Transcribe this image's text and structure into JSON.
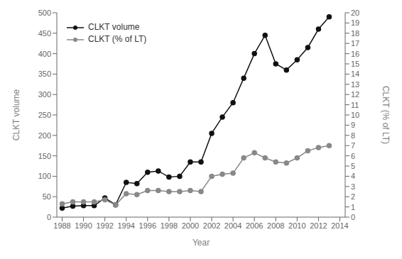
{
  "chart_data": {
    "type": "line",
    "xlabel": "Year",
    "ylabel": "CLKT volume",
    "y2label": "CLKT (% of LT)",
    "x": [
      1988,
      1989,
      1990,
      1991,
      1992,
      1993,
      1994,
      1995,
      1996,
      1997,
      1998,
      1999,
      2000,
      2001,
      2002,
      2003,
      2004,
      2005,
      2006,
      2007,
      2008,
      2009,
      2010,
      2011,
      2012,
      2013
    ],
    "series": [
      {
        "name": "CLKT volume",
        "color": "#111111",
        "marker": "circle",
        "values": [
          22,
          27,
          28,
          28,
          47,
          30,
          85,
          82,
          110,
          113,
          98,
          100,
          135,
          135,
          205,
          245,
          280,
          340,
          400,
          445,
          375,
          360,
          385,
          415,
          460,
          490
        ]
      },
      {
        "name": "CLKT (% of LT)",
        "color": "#888888",
        "marker": "circle",
        "axis": "y2",
        "values": [
          1.3,
          1.5,
          1.5,
          1.5,
          1.7,
          1.2,
          2.3,
          2.2,
          2.6,
          2.6,
          2.5,
          2.5,
          2.6,
          2.5,
          4.0,
          4.2,
          4.3,
          5.8,
          6.3,
          5.8,
          5.4,
          5.3,
          5.8,
          6.5,
          6.8,
          7.0
        ]
      }
    ],
    "xlim": [
      1987.5,
      2014.5
    ],
    "xticks": [
      1988,
      1990,
      1992,
      1994,
      1996,
      1998,
      2000,
      2002,
      2004,
      2006,
      2008,
      2010,
      2012,
      2014
    ],
    "ylim": [
      0,
      500
    ],
    "yticks": [
      0,
      50,
      100,
      150,
      200,
      250,
      300,
      350,
      400,
      450,
      500
    ],
    "y2lim": [
      0,
      20
    ],
    "y2ticks": [
      0,
      1,
      2,
      3,
      4,
      5,
      6,
      7,
      8,
      9,
      10,
      11,
      12,
      13,
      14,
      15,
      16,
      17,
      18,
      19,
      20
    ],
    "legend": "upper left",
    "grid": false
  }
}
